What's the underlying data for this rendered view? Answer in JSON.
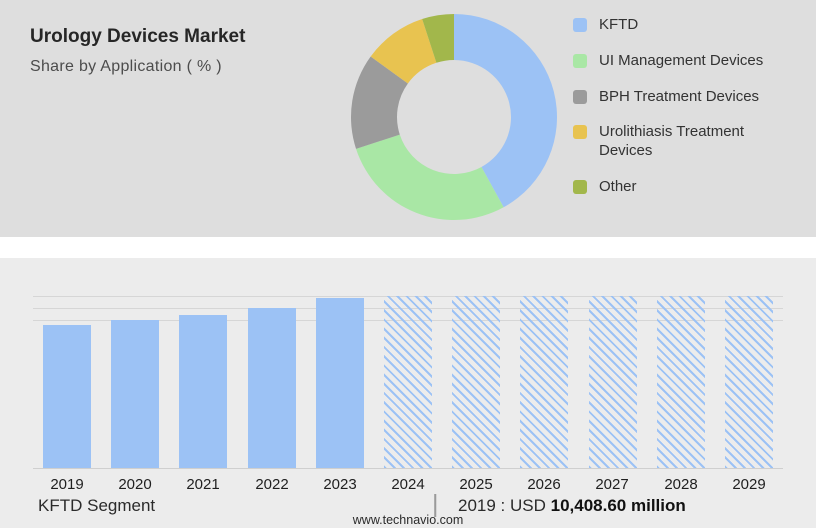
{
  "header": {
    "title": "Urology Devices Market",
    "subtitle": "Share by Application ( % )"
  },
  "colors": {
    "kftd_blue": "#9CC2F5",
    "ui_green": "#A9E7A5",
    "bph_gray": "#9B9B9B",
    "urolithiasis_yellow": "#E8C350",
    "other_olive": "#A2B74B",
    "top_background": "#DEDEDE",
    "bottom_background": "#ECECEC"
  },
  "legend": [
    {
      "label": "KFTD",
      "color": "#9CC2F5"
    },
    {
      "label": "UI Management Devices",
      "color": "#A9E7A5"
    },
    {
      "label": "BPH Treatment Devices",
      "color": "#9B9B9B"
    },
    {
      "label": "Urolithiasis Treatment Devices",
      "color": "#E8C350"
    },
    {
      "label": "Other",
      "color": "#A2B74B"
    }
  ],
  "chart_data": [
    {
      "type": "pie",
      "subtype": "donut",
      "title": "Urology Devices Market - Share by Application ( % )",
      "labels": [
        "KFTD",
        "UI Management Devices",
        "BPH Treatment Devices",
        "Urolithiasis Treatment Devices",
        "Other"
      ],
      "values": [
        42,
        28,
        15,
        10,
        5
      ],
      "colors": [
        "#9CC2F5",
        "#A9E7A5",
        "#9B9B9B",
        "#E8C350",
        "#A2B74B"
      ],
      "legend_position": "right",
      "start_angle_deg": 0,
      "direction": "clockwise"
    },
    {
      "type": "bar",
      "categories": [
        "2019",
        "2020",
        "2021",
        "2022",
        "2023",
        "2024",
        "2025",
        "2026",
        "2027",
        "2028",
        "2029"
      ],
      "relative_heights": [
        0.83,
        0.86,
        0.89,
        0.93,
        0.99,
        1,
        1,
        1,
        1,
        1,
        1
      ],
      "historical_categories": [
        "2019",
        "2020",
        "2021",
        "2022",
        "2023"
      ],
      "forecast_categories": [
        "2024",
        "2025",
        "2026",
        "2027",
        "2028",
        "2029"
      ],
      "bar_color": "#9CC2F5",
      "forecast_fill": "diagonal-hatch",
      "xlabel": "",
      "ylabel": "",
      "y_axis_labels_visible": false,
      "grid": "horizontal-top-lines",
      "annotation": "2019 : USD 10,408.60 million"
    }
  ],
  "footer": {
    "segment_label": "KFTD Segment",
    "separator": "|",
    "value_prefix": "2019 : USD",
    "value_bold": "10,408.60 million",
    "website": "www.technavio.com"
  }
}
